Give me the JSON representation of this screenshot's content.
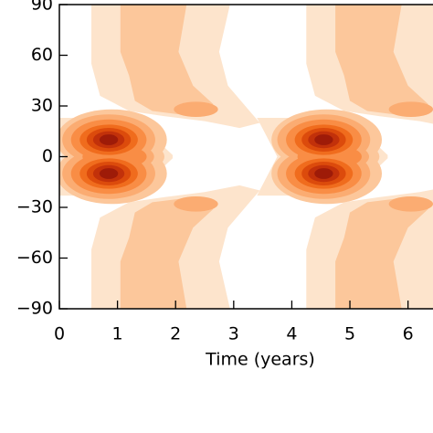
{
  "chart_data": {
    "type": "contour",
    "xlabel": "Time (years)",
    "xlim": [
      0,
      6.43
    ],
    "ylim": [
      -90,
      90
    ],
    "xticks": [
      0,
      1,
      2,
      3,
      4,
      5,
      6
    ],
    "yticks": [
      {
        "value": -90,
        "label": "−90"
      },
      {
        "value": -60,
        "label": "−60"
      },
      {
        "value": -30,
        "label": "−30"
      },
      0,
      30,
      60,
      90
    ],
    "colors": [
      "#fde4cc",
      "#fcc79b",
      "#fbac72",
      "#f98d45",
      "#f06c1d",
      "#dc4b0c",
      "#c2310a",
      "#9e1b08"
    ]
  }
}
